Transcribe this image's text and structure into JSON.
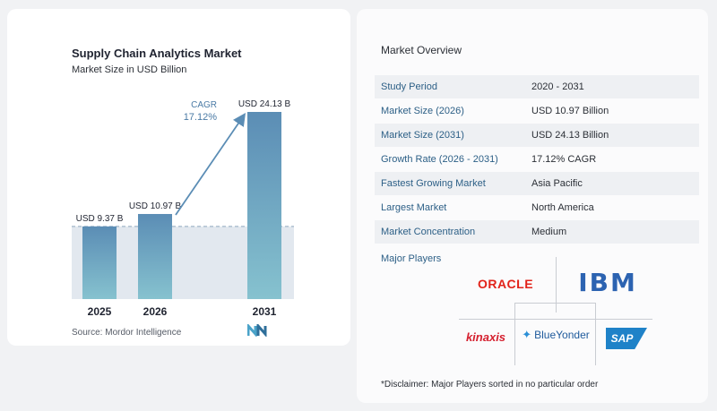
{
  "chart_data": {
    "type": "bar",
    "title": "Supply Chain Analytics Market",
    "subtitle": "Market Size in USD Billion",
    "categories": [
      "2025",
      "2026",
      "2031"
    ],
    "values": [
      9.37,
      10.97,
      24.13
    ],
    "value_labels": [
      "USD 9.37 B",
      "USD 10.97 B",
      "USD 24.13 B"
    ],
    "reference_line_value": 9.37,
    "cagr_label": "CAGR",
    "cagr_value": "17.12%",
    "ylim": [
      0,
      24.13
    ],
    "grid": false,
    "colors": {
      "bar_top": "#5b8db5",
      "bar_bottom": "#86c2cf",
      "band": "#e2e8ef",
      "arrow": "#5b8db5"
    }
  },
  "source": "Source:  Mordor Intelligence",
  "overview": {
    "title": "Market Overview",
    "rows": [
      {
        "label": "Study Period",
        "value": "2020 - 2031"
      },
      {
        "label": "Market Size (2026)",
        "value": "USD 10.97 Billion"
      },
      {
        "label": "Market Size (2031)",
        "value": "USD 24.13 Billion"
      },
      {
        "label": "Growth Rate (2026 - 2031)",
        "value": "17.12% CAGR"
      },
      {
        "label": "Fastest Growing Market",
        "value": "Asia Pacific"
      },
      {
        "label": "Largest Market",
        "value": "North America"
      },
      {
        "label": "Market Concentration",
        "value": "Medium"
      }
    ]
  },
  "players": {
    "title": "Major Players",
    "oracle": "ORACLE",
    "ibm": "IBM",
    "kinaxis": "kinaxis",
    "blueyonder": "BlueYonder",
    "sap": "SAP"
  },
  "disclaimer": "*Disclaimer: Major Players sorted in no particular order"
}
